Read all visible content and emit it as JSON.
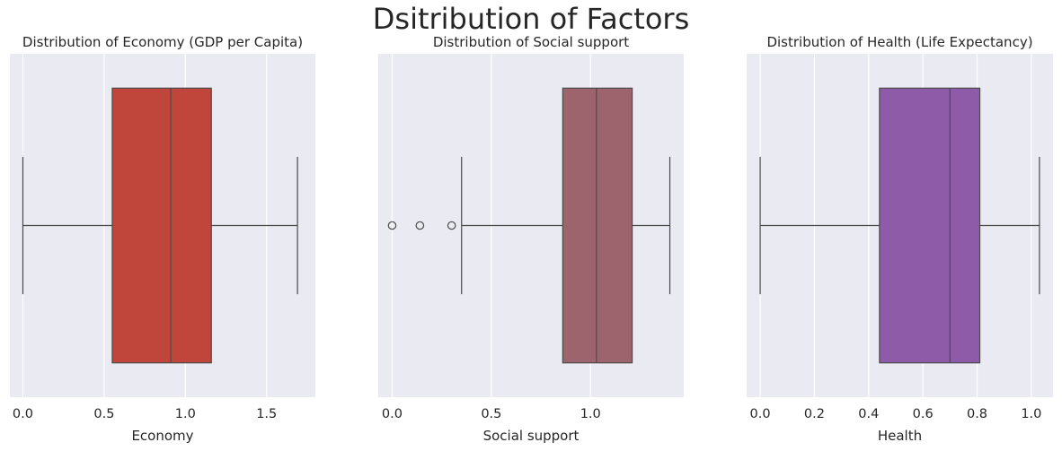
{
  "suptitle": "Dsitribution of Factors",
  "chart_data": [
    {
      "type": "box",
      "title": "Distribution of Economy (GDP per Capita)",
      "xlabel": "Economy",
      "ylabel": "",
      "xlim": [
        -0.08,
        1.8
      ],
      "xticks": [
        0.0,
        0.5,
        1.0,
        1.5
      ],
      "tick_labels": [
        "0.0",
        "0.5",
        "1.0",
        "1.5"
      ],
      "grid": true,
      "color": "#c0463c",
      "stats": {
        "whisker_low": 0.0,
        "q1": 0.55,
        "median": 0.91,
        "q3": 1.16,
        "whisker_high": 1.69
      },
      "outliers": []
    },
    {
      "type": "box",
      "title": "Distribution of Social support",
      "xlabel": "Social support",
      "ylabel": "",
      "xlim": [
        -0.07,
        1.47
      ],
      "xticks": [
        0.0,
        0.5,
        1.0
      ],
      "tick_labels": [
        "0.0",
        "0.5",
        "1.0"
      ],
      "grid": true,
      "color": "#9e646e",
      "stats": {
        "whisker_low": 0.35,
        "q1": 0.86,
        "median": 1.03,
        "q3": 1.21,
        "whisker_high": 1.4
      },
      "outliers": [
        0.0,
        0.14,
        0.3
      ]
    },
    {
      "type": "box",
      "title": "Distribution of Health (Life Expectancy)",
      "xlabel": "Health",
      "ylabel": "",
      "xlim": [
        -0.05,
        1.08
      ],
      "xticks": [
        0.0,
        0.2,
        0.4,
        0.6,
        0.8,
        1.0
      ],
      "tick_labels": [
        "0.0",
        "0.2",
        "0.4",
        "0.6",
        "0.8",
        "1.0"
      ],
      "grid": true,
      "color": "#8e5ba8",
      "stats": {
        "whisker_low": 0.0,
        "q1": 0.44,
        "median": 0.7,
        "q3": 0.81,
        "whisker_high": 1.03
      },
      "outliers": []
    }
  ]
}
